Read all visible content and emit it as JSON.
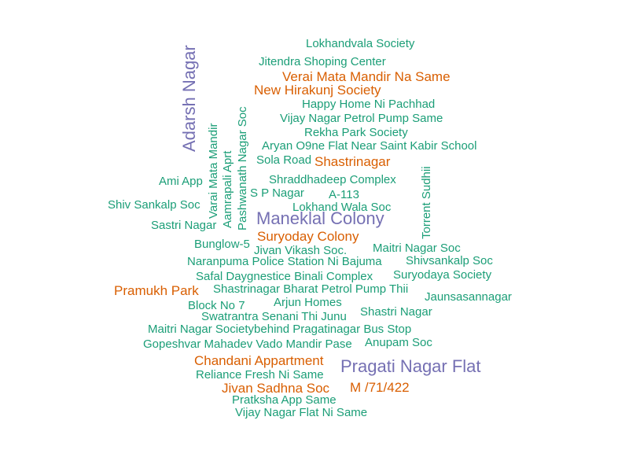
{
  "palette": {
    "teal": "#1b9e77",
    "orange": "#d95f02",
    "purple": "#7570b3"
  },
  "words": [
    {
      "text": "Lokhandvala Society",
      "color": "teal"
    },
    {
      "text": "Jitendra Shoping Center",
      "color": "teal"
    },
    {
      "text": "Verai Mata Mandir Na Same",
      "color": "orange"
    },
    {
      "text": "New Hirakunj Society",
      "color": "orange"
    },
    {
      "text": "Happy Home Ni Pachhad",
      "color": "teal"
    },
    {
      "text": "Vijay Nagar Petrol Pump Same",
      "color": "teal"
    },
    {
      "text": "Rekha Park Society",
      "color": "teal"
    },
    {
      "text": "Aryan O9ne Flat Near Saint Kabir School",
      "color": "teal"
    },
    {
      "text": "Sola Road",
      "color": "teal"
    },
    {
      "text": "Shastrinagar",
      "color": "orange"
    },
    {
      "text": "Ami App",
      "color": "teal"
    },
    {
      "text": "Shraddhadeep Complex",
      "color": "teal"
    },
    {
      "text": "S P Nagar",
      "color": "teal"
    },
    {
      "text": "A-113",
      "color": "teal"
    },
    {
      "text": "Shiv Sankalp Soc",
      "color": "teal"
    },
    {
      "text": "Lokhand Wala Soc",
      "color": "teal"
    },
    {
      "text": "Maneklal Colony",
      "color": "purple"
    },
    {
      "text": "Sastri Nagar",
      "color": "teal"
    },
    {
      "text": "Suryoday Colony",
      "color": "orange"
    },
    {
      "text": "Bunglow-5",
      "color": "teal"
    },
    {
      "text": "Jivan Vikash Soc.",
      "color": "teal"
    },
    {
      "text": "Maitri Nagar Soc",
      "color": "teal"
    },
    {
      "text": "Naranpuma Police Station Ni Bajuma",
      "color": "teal"
    },
    {
      "text": "Shivsankalp Soc",
      "color": "teal"
    },
    {
      "text": "Safal Daygnestice Binali Complex",
      "color": "teal"
    },
    {
      "text": "Suryodaya Society",
      "color": "teal"
    },
    {
      "text": "Pramukh Park",
      "color": "orange"
    },
    {
      "text": "Shastrinagar Bharat Petrol Pump Thii",
      "color": "teal"
    },
    {
      "text": "Jaunsasannagar",
      "color": "teal"
    },
    {
      "text": "Block No 7",
      "color": "teal"
    },
    {
      "text": "Arjun Homes",
      "color": "teal"
    },
    {
      "text": "Shastri Nagar",
      "color": "teal"
    },
    {
      "text": "Swatrantra Senani Thi Junu",
      "color": "teal"
    },
    {
      "text": "Maitri Nagar Societybehind Pragatinagar Bus Stop",
      "color": "teal"
    },
    {
      "text": "Gopeshvar Mahadev Vado Mandir Pase",
      "color": "teal"
    },
    {
      "text": "Anupam Soc",
      "color": "teal"
    },
    {
      "text": "Chandani Appartment",
      "color": "orange"
    },
    {
      "text": "Pragati Nagar Flat",
      "color": "purple"
    },
    {
      "text": "Reliance Fresh Ni Same",
      "color": "teal"
    },
    {
      "text": "Jivan Sadhna Soc",
      "color": "orange"
    },
    {
      "text": "M /71/422",
      "color": "orange"
    },
    {
      "text": "Pratksha App Same",
      "color": "teal"
    },
    {
      "text": "Vijay Nagar Flat Ni Same",
      "color": "teal"
    },
    {
      "text": "Adarsh Nagar",
      "color": "purple"
    },
    {
      "text": "Varai Mata Mandir",
      "color": "teal"
    },
    {
      "text": "Aamrapali Aprt",
      "color": "teal"
    },
    {
      "text": "Pashwanath Nagar Soc",
      "color": "teal"
    },
    {
      "text": "Torrent Sudhii",
      "color": "teal"
    }
  ]
}
